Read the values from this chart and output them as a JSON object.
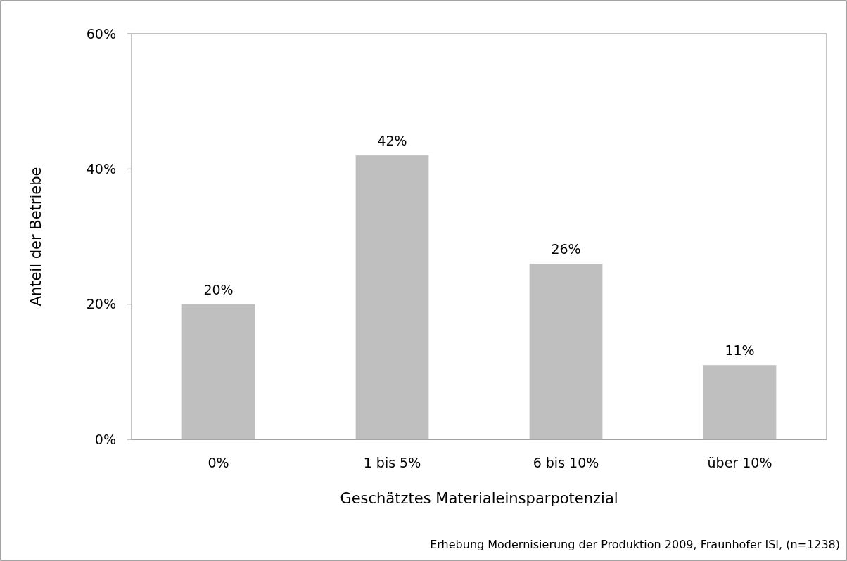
{
  "chart_data": {
    "type": "bar",
    "xlabel": "Geschätztes Materialeinsparpotenzial",
    "ylabel": "Anteil der Betriebe",
    "categories": [
      "0%",
      "1 bis 5%",
      "6 bis 10%",
      "über 10%"
    ],
    "values": [
      20,
      42,
      26,
      11
    ],
    "value_labels": [
      "20%",
      "42%",
      "26%",
      "11%"
    ],
    "color": "#bfbfbf",
    "ylim": [
      0,
      60
    ],
    "yticks": [
      {
        "value": 0,
        "label": "0%"
      },
      {
        "value": 20,
        "label": "20%"
      },
      {
        "value": 40,
        "label": "40%"
      },
      {
        "value": 60,
        "label": "60%"
      }
    ],
    "annotations": [
      "Erhebung Modernisierung der Produktion 2009, Fraunhofer ISI, (n=1238)"
    ]
  }
}
